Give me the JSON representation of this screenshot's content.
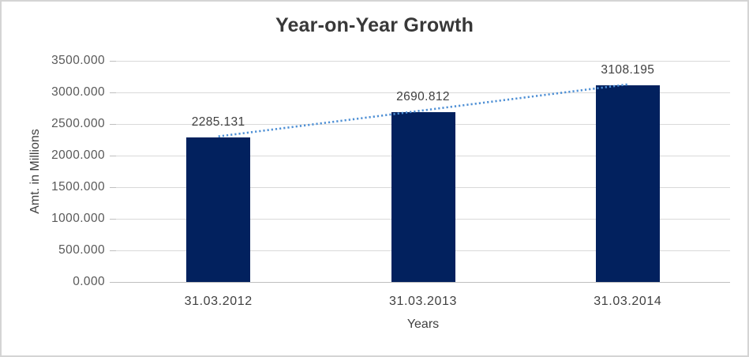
{
  "chart_data": {
    "type": "bar",
    "title": "Year-on-Year Growth",
    "xlabel": "Years",
    "ylabel": "Amt. in Millions",
    "categories": [
      "31.03.2012",
      "31.03.2013",
      "31.03.2014"
    ],
    "values": [
      2285.131,
      2690.812,
      3108.195
    ],
    "data_labels": [
      "2285.131",
      "2690.812",
      "3108.195"
    ],
    "ylim": [
      0,
      3500
    ],
    "yticks": [
      0,
      500,
      1000,
      1500,
      2000,
      2500,
      3000,
      3500
    ],
    "ytick_labels": [
      "0.000",
      "500.000",
      "1000.000",
      "1500.000",
      "2000.000",
      "2500.000",
      "3000.000",
      "3500.000"
    ],
    "grid": true,
    "legend": "none",
    "trendline": {
      "style": "dotted",
      "from_index": 0,
      "to_index": 2
    },
    "colors": {
      "bar": "#02215E",
      "trendline": "#4F90D5",
      "gridline": "#D9D9D9",
      "axis_line": "#BFBFBF",
      "title_text": "#383838",
      "tick_text": "#595959",
      "label_text": "#404040"
    }
  }
}
